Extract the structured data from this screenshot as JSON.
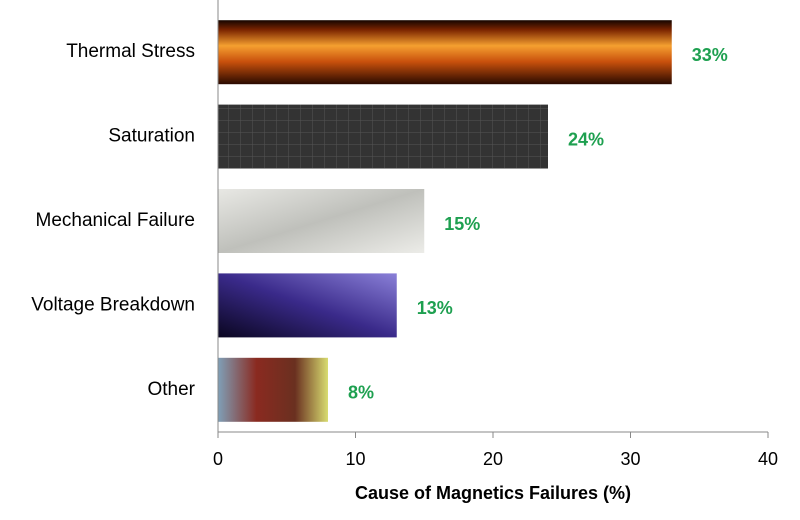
{
  "chart_data": {
    "type": "barh",
    "categories": [
      "Thermal Stress",
      "Saturation",
      "Mechanical Failure",
      "Voltage Breakdown",
      "Other"
    ],
    "values": [
      33,
      24,
      15,
      13,
      8
    ],
    "value_labels": [
      "33%",
      "24%",
      "15%",
      "13%",
      "8%"
    ],
    "xlabel": "Cause of Magnetics Failures (%)",
    "xlim": [
      0,
      40
    ],
    "xticks": [
      0,
      10,
      20,
      30,
      40
    ]
  }
}
